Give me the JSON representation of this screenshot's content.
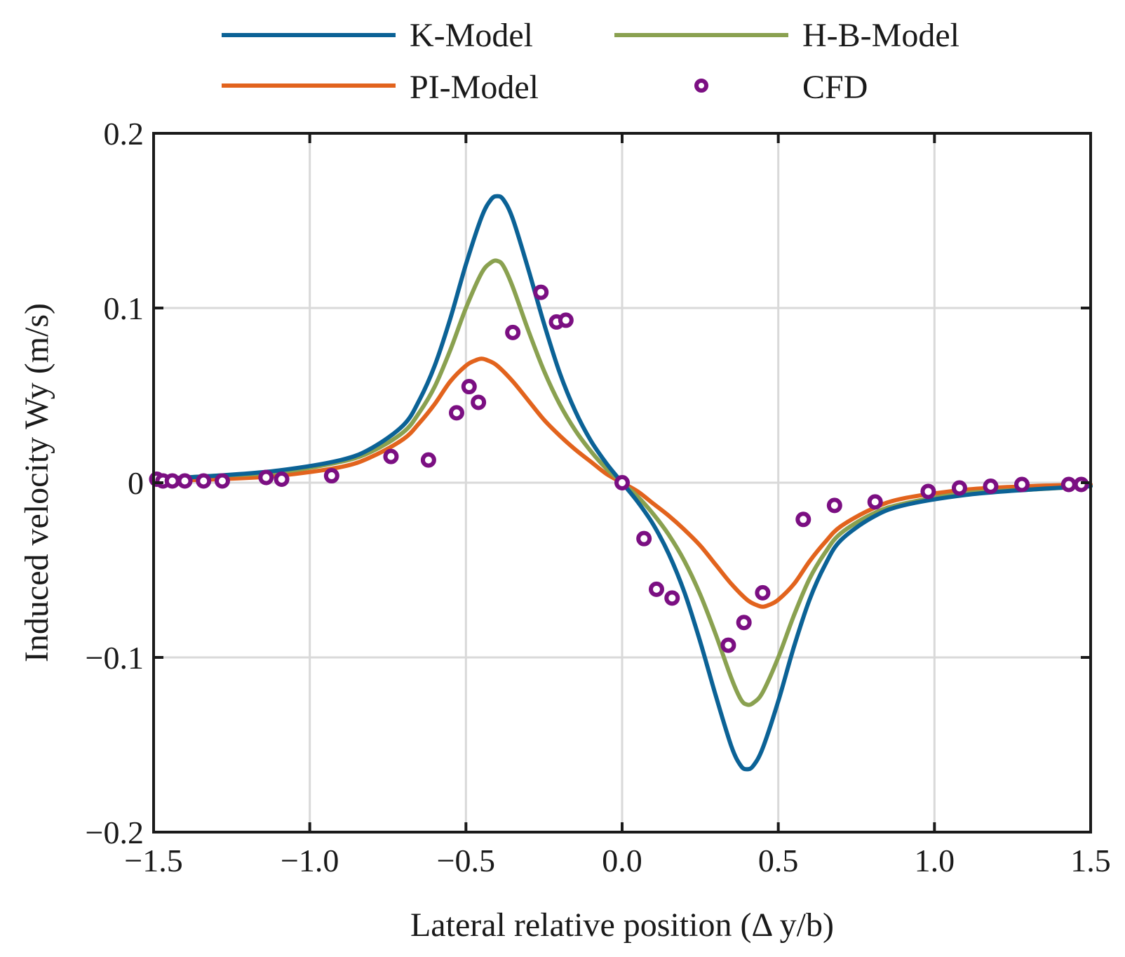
{
  "chart_data": {
    "type": "line",
    "title": "",
    "xlabel": "Lateral relative position (Δ y/b)",
    "ylabel": "Induced velocity Wy (m/s)",
    "xlim": [
      -1.5,
      1.5
    ],
    "ylim": [
      -0.2,
      0.2
    ],
    "grid": true,
    "legend_position": "top-outside",
    "x_ticks": [
      -1.5,
      -1.0,
      -0.5,
      0.0,
      0.5,
      1.0,
      1.5
    ],
    "x_tick_labels": [
      "−1.5",
      "−1.0",
      "−0.5",
      "0.0",
      "0.5",
      "1.0",
      "1.5"
    ],
    "y_ticks": [
      0.2,
      0.1,
      0,
      -0.1,
      -0.2
    ],
    "y_tick_labels": [
      "0.2",
      "0.1",
      "0",
      "−0.1",
      "−0.2"
    ],
    "series": [
      {
        "name": "K-Model",
        "kind": "line",
        "color": "#0b6296",
        "x": [
          -1.5,
          -1.3,
          -1.1,
          -0.9,
          -0.8,
          -0.7,
          -0.65,
          -0.6,
          -0.55,
          -0.5,
          -0.45,
          -0.42,
          -0.4,
          -0.38,
          -0.35,
          -0.3,
          -0.25,
          -0.2,
          -0.15,
          -0.1,
          -0.05,
          0.0,
          0.05,
          0.1,
          0.15,
          0.2,
          0.25,
          0.3,
          0.35,
          0.38,
          0.4,
          0.42,
          0.45,
          0.5,
          0.55,
          0.6,
          0.65,
          0.7,
          0.8,
          0.9,
          1.1,
          1.3,
          1.5
        ],
        "y": [
          0.002,
          0.004,
          0.007,
          0.013,
          0.02,
          0.033,
          0.047,
          0.067,
          0.094,
          0.125,
          0.152,
          0.162,
          0.164,
          0.162,
          0.151,
          0.122,
          0.091,
          0.063,
          0.041,
          0.024,
          0.011,
          0.0,
          -0.011,
          -0.024,
          -0.041,
          -0.063,
          -0.091,
          -0.122,
          -0.151,
          -0.162,
          -0.164,
          -0.162,
          -0.152,
          -0.125,
          -0.094,
          -0.067,
          -0.047,
          -0.033,
          -0.02,
          -0.013,
          -0.007,
          -0.004,
          -0.002
        ]
      },
      {
        "name": "H-B-Model",
        "kind": "line",
        "color": "#8aa150",
        "x": [
          -1.5,
          -1.3,
          -1.1,
          -0.9,
          -0.8,
          -0.7,
          -0.65,
          -0.6,
          -0.55,
          -0.5,
          -0.45,
          -0.42,
          -0.4,
          -0.38,
          -0.35,
          -0.3,
          -0.25,
          -0.2,
          -0.15,
          -0.1,
          -0.05,
          0.0,
          0.05,
          0.1,
          0.15,
          0.2,
          0.25,
          0.3,
          0.35,
          0.38,
          0.4,
          0.42,
          0.45,
          0.5,
          0.55,
          0.6,
          0.65,
          0.7,
          0.8,
          0.9,
          1.1,
          1.3,
          1.5
        ],
        "y": [
          0.002,
          0.004,
          0.006,
          0.012,
          0.018,
          0.029,
          0.04,
          0.055,
          0.076,
          0.1,
          0.12,
          0.126,
          0.127,
          0.124,
          0.112,
          0.087,
          0.064,
          0.045,
          0.03,
          0.018,
          0.008,
          0.0,
          -0.008,
          -0.018,
          -0.03,
          -0.045,
          -0.064,
          -0.087,
          -0.112,
          -0.124,
          -0.127,
          -0.126,
          -0.12,
          -0.1,
          -0.076,
          -0.055,
          -0.04,
          -0.029,
          -0.018,
          -0.012,
          -0.006,
          -0.004,
          -0.002
        ]
      },
      {
        "name": "PI-Model",
        "kind": "line",
        "color": "#e2631d",
        "x": [
          -1.5,
          -1.3,
          -1.1,
          -0.9,
          -0.8,
          -0.7,
          -0.65,
          -0.6,
          -0.55,
          -0.5,
          -0.47,
          -0.45,
          -0.43,
          -0.4,
          -0.35,
          -0.3,
          -0.25,
          -0.2,
          -0.15,
          -0.1,
          -0.05,
          0.0,
          0.05,
          0.1,
          0.15,
          0.2,
          0.25,
          0.3,
          0.35,
          0.4,
          0.43,
          0.45,
          0.47,
          0.5,
          0.55,
          0.6,
          0.65,
          0.7,
          0.8,
          0.9,
          1.1,
          1.3,
          1.5
        ],
        "y": [
          0.001,
          0.002,
          0.004,
          0.009,
          0.015,
          0.025,
          0.034,
          0.045,
          0.058,
          0.067,
          0.07,
          0.071,
          0.07,
          0.067,
          0.058,
          0.047,
          0.036,
          0.027,
          0.019,
          0.012,
          0.005,
          0.0,
          -0.005,
          -0.012,
          -0.019,
          -0.027,
          -0.036,
          -0.047,
          -0.058,
          -0.067,
          -0.07,
          -0.071,
          -0.07,
          -0.067,
          -0.058,
          -0.045,
          -0.034,
          -0.025,
          -0.015,
          -0.009,
          -0.004,
          -0.002,
          -0.001
        ]
      },
      {
        "name": "CFD",
        "kind": "scatter",
        "color": "#7b0f82",
        "x": [
          -1.49,
          -1.47,
          -1.44,
          -1.4,
          -1.34,
          -1.28,
          -1.14,
          -1.09,
          -0.93,
          -0.74,
          -0.62,
          -0.53,
          -0.49,
          -0.46,
          -0.35,
          -0.26,
          -0.21,
          -0.18,
          0.0,
          0.07,
          0.11,
          0.16,
          0.34,
          0.39,
          0.45,
          0.58,
          0.68,
          0.81,
          0.98,
          1.08,
          1.18,
          1.28,
          1.43,
          1.47
        ],
        "y": [
          0.002,
          0.001,
          0.001,
          0.001,
          0.001,
          0.001,
          0.003,
          0.002,
          0.004,
          0.015,
          0.013,
          0.04,
          0.055,
          0.046,
          0.086,
          0.109,
          0.092,
          0.093,
          0.0,
          -0.032,
          -0.061,
          -0.066,
          -0.093,
          -0.08,
          -0.063,
          -0.021,
          -0.013,
          -0.011,
          -0.005,
          -0.003,
          -0.002,
          -0.001,
          -0.001,
          -0.001
        ]
      }
    ]
  }
}
